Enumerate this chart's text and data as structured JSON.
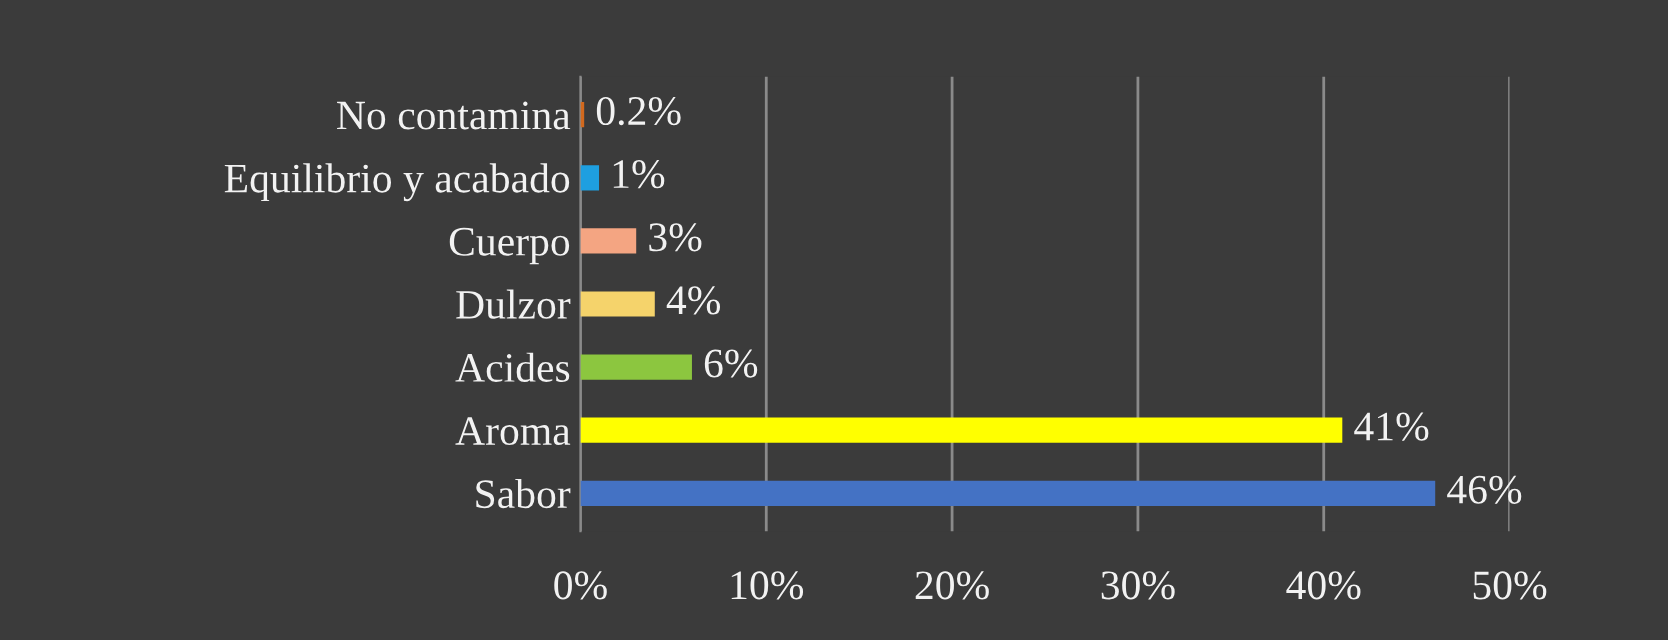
{
  "chart_data": {
    "type": "bar",
    "orientation": "horizontal",
    "categories": [
      "No contamina",
      "Equilibrio y acabado",
      "Cuerpo",
      "Dulzor",
      "Acides",
      "Aroma",
      "Sabor"
    ],
    "values": [
      0.2,
      1,
      3,
      4,
      6,
      41,
      46
    ],
    "colors": [
      "#d2691e",
      "#1e9fe0",
      "#f4a582",
      "#f5d36b",
      "#8cc63f",
      "#ffff00",
      "#4472c4"
    ],
    "value_labels": [
      "0.2%",
      "1%",
      "3%",
      "4%",
      "6%",
      "41%",
      "46%"
    ],
    "xlim": [
      0,
      50
    ],
    "xticks": [
      {
        "value": 0,
        "label": "0%"
      },
      {
        "value": 10,
        "label": "10%"
      },
      {
        "value": 20,
        "label": "20%"
      },
      {
        "value": 30,
        "label": "30%"
      },
      {
        "value": 40,
        "label": "40%"
      },
      {
        "value": 50,
        "label": "50%"
      }
    ],
    "grid": "x",
    "legend": false
  }
}
